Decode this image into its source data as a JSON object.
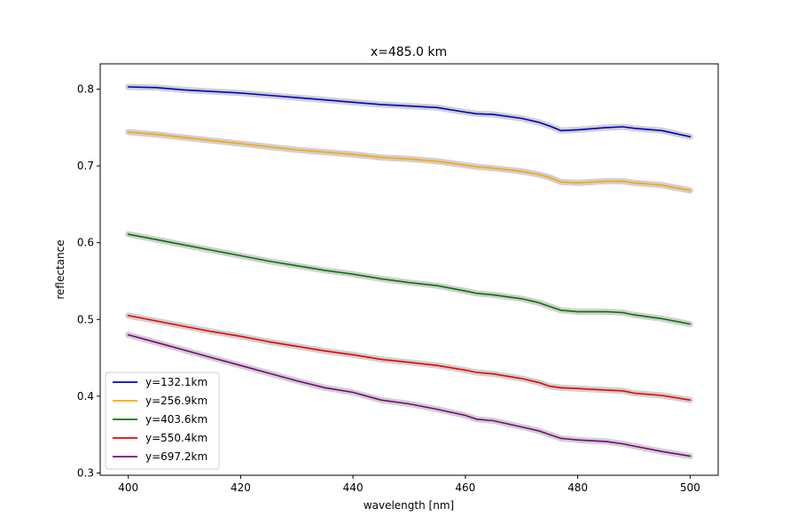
{
  "chart_data": {
    "type": "line",
    "title": "x=485.0 km",
    "xlabel": "wavelength [nm]",
    "ylabel": "reflectance",
    "xlim": [
      395,
      505
    ],
    "ylim": [
      0.297,
      0.833
    ],
    "xticks": [
      400,
      420,
      440,
      460,
      480,
      500
    ],
    "yticks": [
      0.3,
      0.4,
      0.5,
      0.6,
      0.7,
      0.8
    ],
    "grid": false,
    "legend_position": "lower-left",
    "band_color": "#c0c0c0",
    "series": [
      {
        "name": "y=132.1km",
        "color": "#0000cc",
        "x": [
          400,
          405,
          410,
          415,
          420,
          425,
          430,
          435,
          440,
          445,
          450,
          455,
          460,
          462,
          465,
          470,
          473,
          475,
          477,
          480,
          485,
          488,
          490,
          495,
          500
        ],
        "y": [
          0.803,
          0.802,
          0.799,
          0.797,
          0.795,
          0.792,
          0.789,
          0.786,
          0.783,
          0.78,
          0.778,
          0.776,
          0.77,
          0.768,
          0.767,
          0.762,
          0.757,
          0.752,
          0.746,
          0.747,
          0.75,
          0.751,
          0.749,
          0.746,
          0.738
        ]
      },
      {
        "name": "y=256.9km",
        "color": "#ffa500",
        "x": [
          400,
          405,
          410,
          415,
          420,
          425,
          430,
          435,
          440,
          445,
          450,
          455,
          460,
          462,
          465,
          470,
          473,
          475,
          477,
          480,
          485,
          488,
          490,
          495,
          500
        ],
        "y": [
          0.744,
          0.741,
          0.737,
          0.733,
          0.729,
          0.725,
          0.721,
          0.718,
          0.715,
          0.711,
          0.709,
          0.706,
          0.701,
          0.699,
          0.697,
          0.693,
          0.689,
          0.685,
          0.679,
          0.678,
          0.68,
          0.68,
          0.678,
          0.675,
          0.668
        ]
      },
      {
        "name": "y=403.6km",
        "color": "#007700",
        "x": [
          400,
          405,
          410,
          415,
          420,
          425,
          430,
          435,
          440,
          445,
          450,
          455,
          460,
          462,
          465,
          470,
          473,
          475,
          477,
          480,
          485,
          488,
          490,
          495,
          500
        ],
        "y": [
          0.611,
          0.604,
          0.597,
          0.59,
          0.583,
          0.576,
          0.57,
          0.564,
          0.559,
          0.553,
          0.548,
          0.544,
          0.537,
          0.534,
          0.532,
          0.527,
          0.522,
          0.517,
          0.512,
          0.51,
          0.51,
          0.509,
          0.506,
          0.501,
          0.494
        ]
      },
      {
        "name": "y=550.4km",
        "color": "#ee0000",
        "x": [
          400,
          405,
          410,
          415,
          420,
          425,
          430,
          435,
          440,
          445,
          450,
          455,
          460,
          462,
          465,
          470,
          473,
          475,
          477,
          480,
          485,
          488,
          490,
          495,
          500
        ],
        "y": [
          0.505,
          0.498,
          0.491,
          0.484,
          0.478,
          0.471,
          0.465,
          0.459,
          0.454,
          0.448,
          0.444,
          0.44,
          0.434,
          0.431,
          0.429,
          0.423,
          0.418,
          0.413,
          0.411,
          0.41,
          0.408,
          0.407,
          0.404,
          0.401,
          0.395
        ]
      },
      {
        "name": "y=697.2km",
        "color": "#800080",
        "x": [
          400,
          405,
          410,
          415,
          420,
          425,
          430,
          435,
          440,
          445,
          450,
          455,
          460,
          462,
          465,
          470,
          473,
          475,
          477,
          480,
          485,
          488,
          490,
          495,
          500
        ],
        "y": [
          0.48,
          0.47,
          0.46,
          0.45,
          0.44,
          0.43,
          0.42,
          0.411,
          0.405,
          0.395,
          0.39,
          0.383,
          0.375,
          0.37,
          0.368,
          0.36,
          0.355,
          0.35,
          0.345,
          0.343,
          0.341,
          0.338,
          0.335,
          0.328,
          0.322
        ]
      }
    ]
  }
}
